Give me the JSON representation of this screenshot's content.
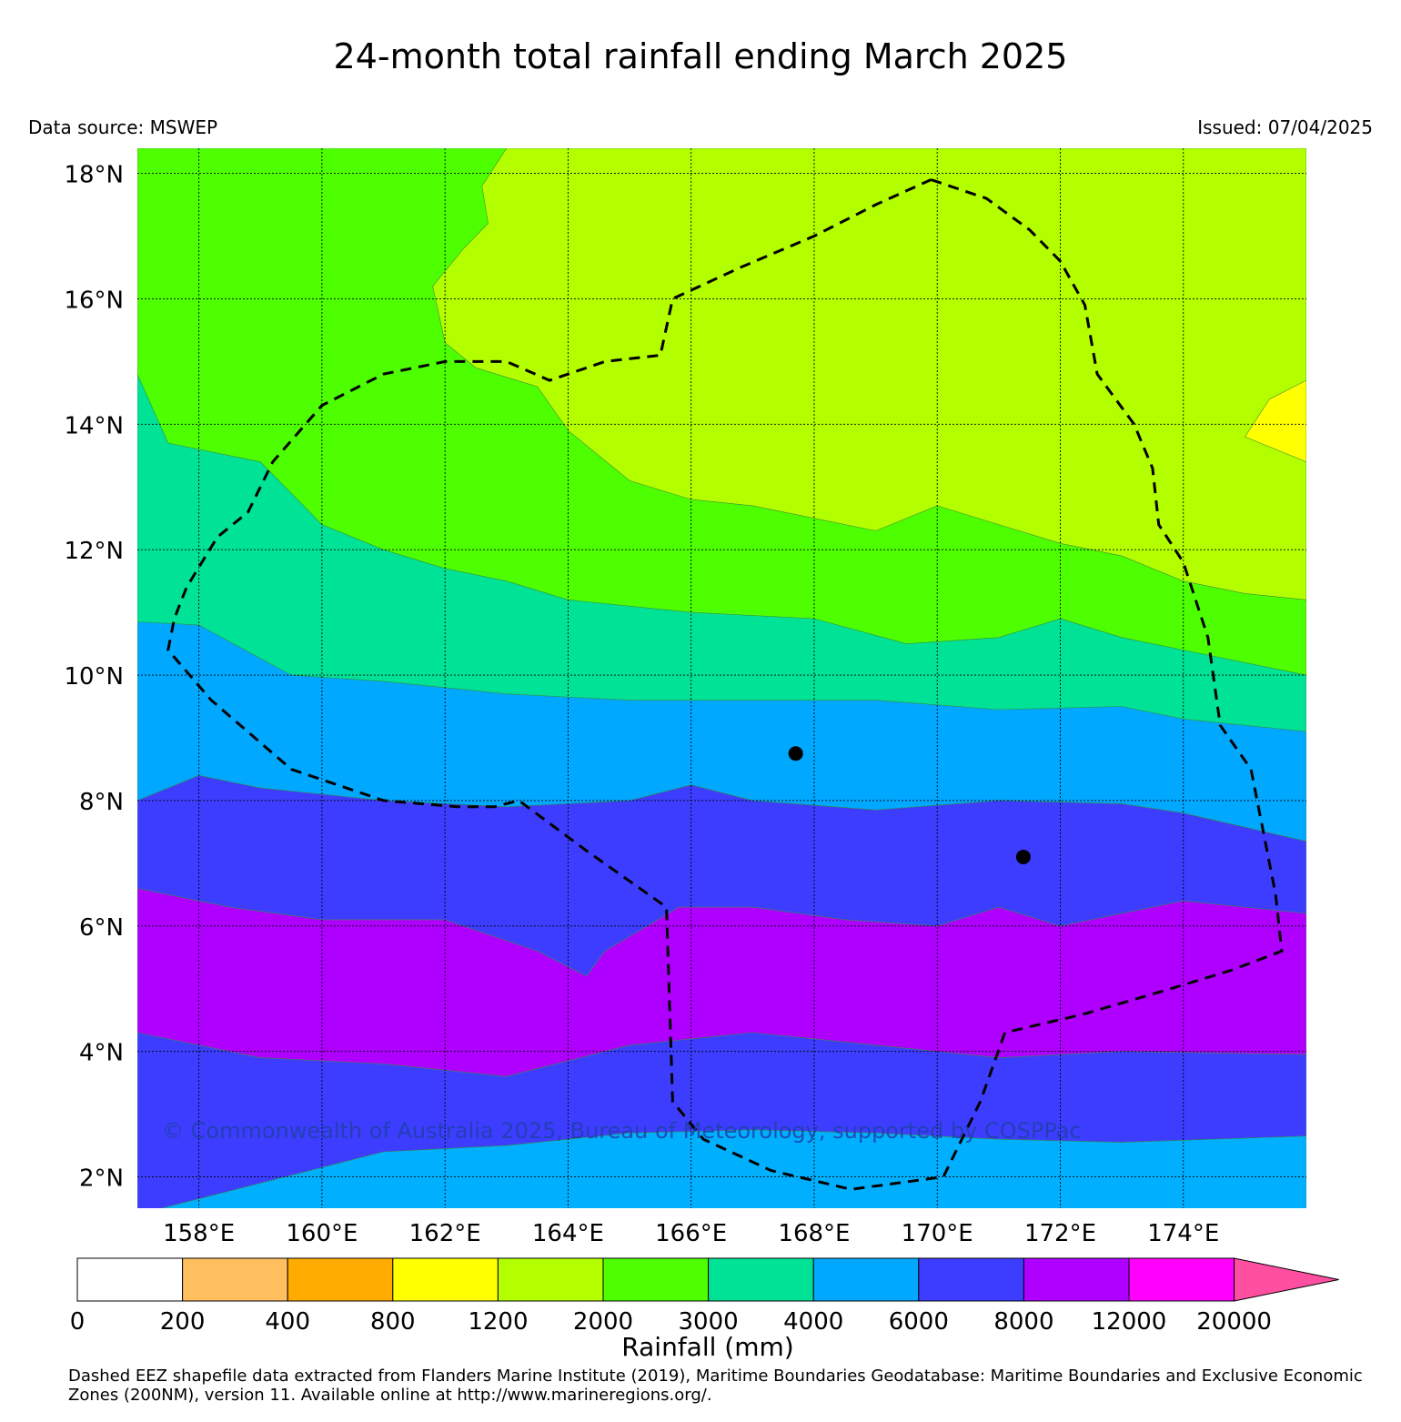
{
  "header": {
    "title": "24-month total rainfall ending March 2025",
    "source": "Data source: MSWEP",
    "issued": "Issued: 07/04/2025"
  },
  "map": {
    "lon_range": [
      157,
      176
    ],
    "lat_range": [
      1.5,
      18.4
    ],
    "lon_ticks": [
      158,
      160,
      162,
      164,
      166,
      168,
      170,
      172,
      174
    ],
    "lon_tick_labels": [
      "158°E",
      "160°E",
      "162°E",
      "164°E",
      "166°E",
      "168°E",
      "170°E",
      "172°E",
      "174°E"
    ],
    "lat_ticks": [
      2,
      4,
      6,
      8,
      10,
      12,
      14,
      16,
      18
    ],
    "lat_tick_labels": [
      "2°N",
      "4°N",
      "6°N",
      "8°N",
      "10°N",
      "12°N",
      "14°N",
      "16°N",
      "18°N"
    ],
    "grid": true,
    "copyright": "© Commonwealth of Australia 2025, Bureau of Meteorology, supported by COSPPac",
    "eez_boundary": [
      [
        169.9,
        17.9
      ],
      [
        170.8,
        17.6
      ],
      [
        171.5,
        17.1
      ],
      [
        172.0,
        16.6
      ],
      [
        172.4,
        15.9
      ],
      [
        172.6,
        14.8
      ],
      [
        173.2,
        14.0
      ],
      [
        173.5,
        13.3
      ],
      [
        173.6,
        12.4
      ],
      [
        174.0,
        11.8
      ],
      [
        174.4,
        10.6
      ],
      [
        174.6,
        9.2
      ],
      [
        175.1,
        8.5
      ],
      [
        175.3,
        7.5
      ],
      [
        175.5,
        6.5
      ],
      [
        175.6,
        5.6
      ],
      [
        174.8,
        5.3
      ],
      [
        173.8,
        5.0
      ],
      [
        172.4,
        4.6
      ],
      [
        171.1,
        4.3
      ],
      [
        170.7,
        3.2
      ],
      [
        170.1,
        2.0
      ],
      [
        168.6,
        1.8
      ],
      [
        167.3,
        2.1
      ],
      [
        166.2,
        2.6
      ],
      [
        165.7,
        3.2
      ],
      [
        165.6,
        6.3
      ],
      [
        164.3,
        7.2
      ],
      [
        163.2,
        8.0
      ],
      [
        162.8,
        7.9
      ],
      [
        162.2,
        7.9
      ],
      [
        161.0,
        8.0
      ],
      [
        159.5,
        8.5
      ],
      [
        158.2,
        9.6
      ],
      [
        157.5,
        10.4
      ],
      [
        157.6,
        10.9
      ],
      [
        157.8,
        11.4
      ],
      [
        158.3,
        12.2
      ],
      [
        158.8,
        12.6
      ],
      [
        159.2,
        13.4
      ],
      [
        160.0,
        14.3
      ],
      [
        161.0,
        14.8
      ],
      [
        162.0,
        15.0
      ],
      [
        163.0,
        15.0
      ],
      [
        163.7,
        14.7
      ],
      [
        164.6,
        15.0
      ],
      [
        165.5,
        15.1
      ],
      [
        165.7,
        16.0
      ],
      [
        166.8,
        16.5
      ],
      [
        168.0,
        17.0
      ],
      [
        169.0,
        17.5
      ],
      [
        169.9,
        17.9
      ]
    ],
    "points": [
      {
        "lon": 167.7,
        "lat": 8.75
      },
      {
        "lon": 171.4,
        "lat": 7.1
      }
    ],
    "bands": [
      {
        "color": "#00b0ff",
        "upper": [
          [
            157,
            1.4
          ],
          [
            159,
            1.9
          ],
          [
            161,
            2.4
          ],
          [
            163,
            2.5
          ],
          [
            165,
            2.7
          ],
          [
            167,
            2.75
          ],
          [
            169,
            2.7
          ],
          [
            171,
            2.6
          ],
          [
            173,
            2.55
          ],
          [
            176,
            2.65
          ]
        ]
      },
      {
        "color": "#3d3dff",
        "upper": [
          [
            157,
            4.3
          ],
          [
            159,
            3.9
          ],
          [
            161,
            3.8
          ],
          [
            163,
            3.6
          ],
          [
            165,
            4.1
          ],
          [
            167,
            4.3
          ],
          [
            169,
            4.1
          ],
          [
            171,
            3.9
          ],
          [
            173,
            4.0
          ],
          [
            176,
            3.95
          ]
        ]
      },
      {
        "color": "#af00ff",
        "upper": [
          [
            157,
            6.6
          ],
          [
            158.5,
            6.3
          ],
          [
            160,
            6.1
          ],
          [
            162,
            6.1
          ],
          [
            163.5,
            5.6
          ],
          [
            164.3,
            5.2
          ],
          [
            164.6,
            5.6
          ],
          [
            165.8,
            6.3
          ],
          [
            167,
            6.3
          ],
          [
            168.5,
            6.1
          ],
          [
            170,
            6.0
          ],
          [
            171,
            6.3
          ],
          [
            172,
            6.0
          ],
          [
            174,
            6.4
          ],
          [
            176,
            6.2
          ]
        ]
      },
      {
        "color": "#3d3dff",
        "upper": [
          [
            157,
            8.0
          ],
          [
            158,
            8.4
          ],
          [
            159,
            8.2
          ],
          [
            161,
            8.0
          ],
          [
            163,
            7.9
          ],
          [
            165,
            8.0
          ],
          [
            166,
            8.25
          ],
          [
            167,
            8.0
          ],
          [
            169,
            7.85
          ],
          [
            171,
            8.0
          ],
          [
            173,
            7.95
          ],
          [
            174,
            7.8
          ],
          [
            176,
            7.35
          ]
        ]
      },
      {
        "color": "#00a8ff",
        "upper": [
          [
            157,
            10.85
          ],
          [
            158,
            10.8
          ],
          [
            159.5,
            10.0
          ],
          [
            161,
            9.9
          ],
          [
            163,
            9.7
          ],
          [
            165,
            9.6
          ],
          [
            167,
            9.6
          ],
          [
            169,
            9.6
          ],
          [
            171,
            9.45
          ],
          [
            173,
            9.5
          ],
          [
            174,
            9.3
          ],
          [
            176,
            9.1
          ]
        ]
      },
      {
        "color": "#00e396",
        "upper": [
          [
            157,
            14.8
          ],
          [
            157.5,
            13.7
          ],
          [
            159,
            13.4
          ],
          [
            160,
            12.4
          ],
          [
            161,
            12.0
          ],
          [
            162,
            11.7
          ],
          [
            163,
            11.5
          ],
          [
            164,
            11.2
          ],
          [
            166,
            11.0
          ],
          [
            168,
            10.9
          ],
          [
            169.5,
            10.5
          ],
          [
            171,
            10.6
          ],
          [
            172,
            10.9
          ],
          [
            173,
            10.6
          ],
          [
            174,
            10.4
          ],
          [
            176,
            10.0
          ]
        ]
      },
      {
        "color": "#4dff00",
        "upper": [
          [
            157,
            18.4
          ],
          [
            163,
            18.4
          ],
          [
            162.6,
            17.8
          ],
          [
            162.7,
            17.2
          ],
          [
            162.3,
            16.8
          ],
          [
            161.8,
            16.2
          ],
          [
            162.0,
            15.3
          ],
          [
            162.5,
            14.9
          ],
          [
            163.5,
            14.6
          ],
          [
            164,
            13.9
          ],
          [
            165,
            13.1
          ],
          [
            166,
            12.8
          ],
          [
            167,
            12.7
          ],
          [
            168,
            12.5
          ],
          [
            169,
            12.3
          ],
          [
            170,
            12.7
          ],
          [
            171,
            12.4
          ],
          [
            172,
            12.1
          ],
          [
            173,
            11.9
          ],
          [
            174,
            11.5
          ],
          [
            175,
            11.3
          ],
          [
            176,
            11.2
          ]
        ]
      },
      {
        "color": "#b3ff00",
        "upper": [
          [
            157,
            18.4
          ],
          [
            176,
            18.4
          ]
        ]
      }
    ],
    "yellow_patch": [
      [
        176,
        14.7
      ],
      [
        175.4,
        14.4
      ],
      [
        175.0,
        13.8
      ],
      [
        175.5,
        13.6
      ],
      [
        176,
        13.4
      ]
    ]
  },
  "colorbar": {
    "title": "Rainfall (mm)",
    "labels": [
      "0",
      "200",
      "400",
      "800",
      "1200",
      "2000",
      "3000",
      "4000",
      "6000",
      "8000",
      "12000",
      "20000"
    ],
    "colors": [
      "#ffffff",
      "#ffbf5e",
      "#ffab00",
      "#ffff00",
      "#b3ff00",
      "#4dff00",
      "#00e396",
      "#00a8ff",
      "#3d3dff",
      "#af00ff",
      "#ff00ff"
    ],
    "extend_color": "#ff4fa0"
  },
  "footnote": "Dashed EEZ shapefile data extracted from Flanders Marine Institute (2019), Maritime Boundaries Geodatabase: Maritime Boundaries and Exclusive Economic Zones (200NM), version 11. Available online at http://www.marineregions.org/."
}
